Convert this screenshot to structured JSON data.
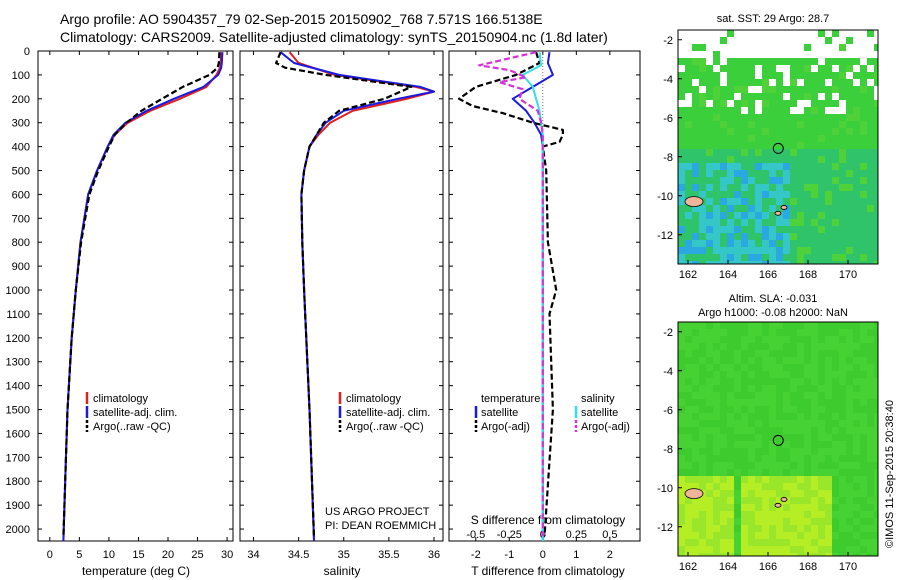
{
  "header": {
    "line1": "Argo profile: AO 5904357_79 02-Sep-2015 20150902_768 7.571S 166.5138E",
    "line2": "Climatology: CARS2009. Satellite-adjusted climatology: synTS_20150904.nc (1.8d later)"
  },
  "colors": {
    "climatology": "#e0201a",
    "satellite": "#1a1ae0",
    "argo": "#000000",
    "satellite_salt": "#33e0e8",
    "argo_salt": "#d633d6"
  },
  "legend_ts": [
    "climatology",
    "satellite-adj. clim.",
    "Argo(..raw -QC)"
  ],
  "legend_diff": {
    "temperature": "temperature",
    "salinity": "salinity",
    "satellite": "satellite",
    "argo": "Argo(-adj)"
  },
  "credits": {
    "project": "US ARGO PROJECT",
    "pi": "PI: DEAN ROEMMICH",
    "imos": "©IMOS 11-Sep-2015 20:38:40"
  },
  "map_sst": {
    "title": "sat. SST: 29 Argo: 28.7",
    "xticks": [
      "162",
      "164",
      "166",
      "168",
      "170"
    ],
    "yticks": [
      "-2",
      "-4",
      "-6",
      "-8",
      "-10",
      "-12"
    ],
    "xlim": [
      161.5,
      171.5
    ],
    "ylim": [
      -13.5,
      -1.5
    ],
    "argo_lon": 166.5138,
    "argo_lat": -7.571
  },
  "map_sla": {
    "title1": "Altim. SLA: -0.031",
    "title2": "Argo h1000: -0.08 h2000: NaN",
    "xticks": [
      "162",
      "164",
      "166",
      "168",
      "170"
    ],
    "yticks": [
      "-2",
      "-4",
      "-6",
      "-8",
      "-10",
      "-12"
    ],
    "xlim": [
      161.5,
      171.5
    ],
    "ylim": [
      -13.5,
      -1.5
    ],
    "argo_lon": 166.5138,
    "argo_lat": -7.571
  },
  "chart_data": [
    {
      "type": "line",
      "xlabel": "temperature (deg C)",
      "ylabel": "",
      "xlim": [
        -2,
        31
      ],
      "ylim": [
        2050,
        0
      ],
      "xticks": [
        "0",
        "5",
        "10",
        "15",
        "20",
        "25",
        "30"
      ],
      "yticks": [
        "0",
        "100",
        "200",
        "300",
        "400",
        "500",
        "600",
        "700",
        "800",
        "900",
        "1000",
        "1100",
        "1200",
        "1300",
        "1400",
        "1500",
        "1600",
        "1700",
        "1800",
        "1900",
        "2000"
      ],
      "series": [
        {
          "name": "climatology",
          "key": "climatology",
          "y": [
            5,
            50,
            70,
            100,
            150,
            200,
            250,
            300,
            350,
            400,
            500,
            600,
            800,
            1000,
            1200,
            1500,
            1800,
            2050
          ],
          "x": [
            29.0,
            28.9,
            28.8,
            28.2,
            26.5,
            22.0,
            17.0,
            13.2,
            11.0,
            9.8,
            8.0,
            6.5,
            5.2,
            4.4,
            3.7,
            3.0,
            2.6,
            2.3
          ]
        },
        {
          "name": "satellite-adj. clim.",
          "key": "satellite",
          "y": [
            5,
            50,
            70,
            100,
            150,
            200,
            250,
            300,
            350,
            400,
            500,
            600,
            800,
            1000,
            1200,
            1500,
            1800,
            2050
          ],
          "x": [
            29.2,
            29.1,
            29.0,
            28.5,
            26.0,
            21.0,
            16.4,
            12.8,
            10.8,
            9.8,
            8.0,
            6.5,
            5.2,
            4.4,
            3.7,
            3.0,
            2.6,
            2.3
          ]
        },
        {
          "name": "Argo(..raw -QC)",
          "key": "argo",
          "dashed": true,
          "y": [
            5,
            50,
            70,
            100,
            150,
            200,
            250,
            300,
            350,
            400,
            500,
            600,
            800,
            1000,
            1200,
            1500,
            1800,
            2030
          ],
          "x": [
            28.7,
            28.6,
            28.4,
            27.0,
            22.5,
            19.0,
            15.5,
            13.0,
            11.0,
            10.0,
            8.2,
            6.7,
            5.3,
            4.4,
            3.7,
            3.0,
            2.6,
            2.3
          ]
        }
      ]
    },
    {
      "type": "line",
      "xlabel": "salinity",
      "ylabel": "",
      "xlim": [
        33.85,
        36.1
      ],
      "ylim": [
        2050,
        0
      ],
      "xticks": [
        "34",
        "34.5",
        "35",
        "35.5",
        "36"
      ],
      "series": [
        {
          "name": "climatology",
          "key": "climatology",
          "y": [
            5,
            50,
            100,
            150,
            170,
            200,
            250,
            300,
            350,
            400,
            500,
            600,
            800,
            1000,
            1500,
            2050
          ],
          "x": [
            34.4,
            34.5,
            34.9,
            35.8,
            36.0,
            35.7,
            35.1,
            34.85,
            34.72,
            34.62,
            34.56,
            34.53,
            34.54,
            34.56,
            34.62,
            34.67
          ]
        },
        {
          "name": "satellite-adj. clim.",
          "key": "satellite",
          "y": [
            5,
            50,
            100,
            150,
            170,
            200,
            250,
            300,
            350,
            400,
            500,
            600,
            800,
            1000,
            1500,
            2050
          ],
          "x": [
            34.3,
            34.45,
            34.95,
            35.85,
            36.0,
            35.6,
            35.0,
            34.8,
            34.7,
            34.62,
            34.56,
            34.53,
            34.54,
            34.56,
            34.62,
            34.67
          ]
        },
        {
          "name": "Argo(..raw -QC)",
          "key": "argo",
          "dashed": true,
          "y": [
            5,
            50,
            70,
            100,
            150,
            200,
            250,
            300,
            350,
            400,
            500,
            600,
            800,
            1000,
            1500,
            2030
          ],
          "x": [
            34.3,
            34.25,
            34.35,
            34.8,
            35.75,
            35.45,
            34.95,
            34.78,
            34.7,
            34.62,
            34.56,
            34.53,
            34.54,
            34.56,
            34.62,
            34.67
          ]
        }
      ]
    },
    {
      "type": "line",
      "xlabel": "T difference from climatology",
      "xlabel2": "S difference from climatology",
      "xlim": [
        -2.8,
        2.9
      ],
      "ylim": [
        2050,
        0
      ],
      "xticks": [
        "-2",
        "-1",
        "0",
        "1",
        "2"
      ],
      "xticks2": [
        "-0.5",
        "-0.25",
        "0",
        "0.25",
        "0.5"
      ],
      "series": [
        {
          "name": "temperature satellite",
          "key": "satellite",
          "y": [
            5,
            50,
            100,
            150,
            200,
            250,
            300,
            350,
            400,
            500,
            2050
          ],
          "x": [
            0.2,
            0.15,
            0.3,
            -0.3,
            -0.9,
            -0.5,
            -0.25,
            -0.05,
            0,
            0,
            0
          ]
        },
        {
          "name": "temperature Argo(-adj)",
          "key": "argo",
          "dashed": true,
          "y": [
            5,
            50,
            100,
            150,
            200,
            230,
            260,
            300,
            330,
            350,
            380,
            400,
            500,
            800,
            1000,
            1100,
            1500,
            2030
          ],
          "x": [
            -0.2,
            -0.1,
            -0.8,
            -2.0,
            -2.5,
            -2.1,
            -1.2,
            -0.3,
            0.6,
            0.6,
            0.5,
            0,
            0.1,
            0.15,
            0.4,
            0.2,
            0.3,
            0.05
          ]
        },
        {
          "name": "salinity satellite",
          "key": "satellite_salt",
          "y": [
            5,
            60,
            100,
            150,
            200,
            250,
            300,
            350,
            2050
          ],
          "x": [
            -0.1,
            -0.05,
            -0.6,
            -0.3,
            -0.2,
            -0.1,
            -0.05,
            0,
            0
          ]
        },
        {
          "name": "salinity Argo(-adj)",
          "key": "argo_salt",
          "dashed": true,
          "y": [
            5,
            60,
            80,
            110,
            130,
            160,
            200,
            250,
            300,
            350,
            2030
          ],
          "x": [
            -0.2,
            -1.9,
            -1.0,
            -0.5,
            -1.3,
            -0.6,
            -0.7,
            -0.15,
            -0.05,
            0,
            0
          ]
        }
      ]
    }
  ]
}
